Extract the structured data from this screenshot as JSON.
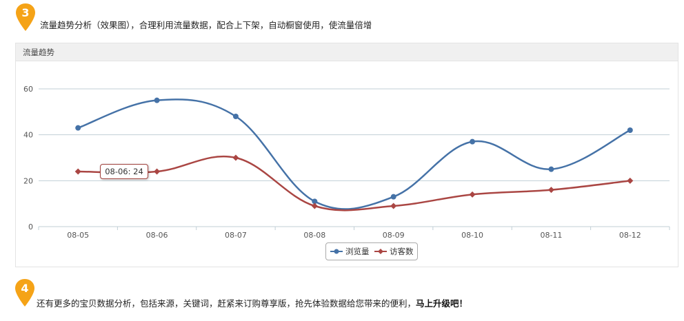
{
  "step3": {
    "number": "3",
    "text": "流量趋势分析（效果图），合理利用流量数据，配合上下架，自动橱窗使用，使流量倍增"
  },
  "panel": {
    "title": "流量趋势"
  },
  "tooltip": {
    "text": "08-06: 24"
  },
  "colors": {
    "badge": "#f5a317",
    "views": "#4572a7",
    "visitors": "#aa4643",
    "grid": "#c0cfd6"
  },
  "chart_data": {
    "type": "line",
    "title": "流量趋势",
    "categories": [
      "08-05",
      "08-06",
      "08-07",
      "08-08",
      "08-09",
      "08-10",
      "08-11",
      "08-12"
    ],
    "series": [
      {
        "name": "浏览量",
        "values": [
          43,
          55,
          48,
          11,
          13,
          37,
          25,
          42
        ]
      },
      {
        "name": "访客数",
        "values": [
          24,
          24,
          30,
          9,
          9,
          14,
          16,
          20
        ]
      }
    ],
    "ylim": [
      0,
      60
    ],
    "yticks": [
      0,
      20,
      40,
      60
    ],
    "grid": true,
    "legend": "bottom-center"
  },
  "step4": {
    "number": "4",
    "text_normal": "还有更多的宝贝数据分析，包括来源，关键词，赶紧来订购尊享版，抢先体验数据给您带来的便利，",
    "text_bold": "马上升级吧！"
  }
}
